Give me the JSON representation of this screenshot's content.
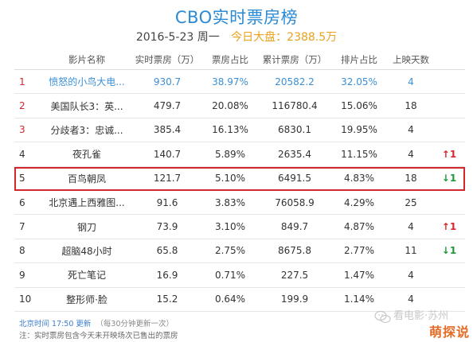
{
  "title": "CBO实时票房榜",
  "subtitle": {
    "date": "2016-5-23 周一",
    "dash_label": "今日大盘：",
    "dash_value": "2388.5万"
  },
  "columns": [
    "影片名称",
    "实时票房（万）",
    "票房占比",
    "累计票房（万）",
    "排片占比",
    "上映天数"
  ],
  "rows": [
    {
      "rank": "1",
      "name": "愤怒的小鸟大电...",
      "cur": "930.7",
      "share": "38.97%",
      "total": "20582.2",
      "seat": "32.05%",
      "days": "4",
      "trend": ""
    },
    {
      "rank": "2",
      "name": "美国队长3：英...",
      "cur": "479.7",
      "share": "20.08%",
      "total": "116780.4",
      "seat": "15.06%",
      "days": "18",
      "trend": ""
    },
    {
      "rank": "3",
      "name": "分歧者3：忠诚...",
      "cur": "385.4",
      "share": "16.13%",
      "total": "6830.1",
      "seat": "19.95%",
      "days": "4",
      "trend": ""
    },
    {
      "rank": "4",
      "name": "夜孔雀",
      "cur": "140.7",
      "share": "5.89%",
      "total": "2635.4",
      "seat": "11.15%",
      "days": "4",
      "trend": "↑1"
    },
    {
      "rank": "5",
      "name": "百鸟朝凤",
      "cur": "121.7",
      "share": "5.10%",
      "total": "6491.5",
      "seat": "4.83%",
      "days": "18",
      "trend": "↓1"
    },
    {
      "rank": "6",
      "name": "北京遇上西雅图...",
      "cur": "91.6",
      "share": "3.83%",
      "total": "76058.9",
      "seat": "4.29%",
      "days": "25",
      "trend": ""
    },
    {
      "rank": "7",
      "name": "钢刀",
      "cur": "73.9",
      "share": "3.10%",
      "total": "849.7",
      "seat": "4.87%",
      "days": "4",
      "trend": "↑1"
    },
    {
      "rank": "8",
      "name": "超脑48小时",
      "cur": "65.8",
      "share": "2.75%",
      "total": "8675.8",
      "seat": "2.77%",
      "days": "11",
      "trend": "↓1"
    },
    {
      "rank": "9",
      "name": "死亡笔记",
      "cur": "16.9",
      "share": "0.71%",
      "total": "227.5",
      "seat": "1.47%",
      "days": "4",
      "trend": ""
    },
    {
      "rank": "10",
      "name": "整形师·脸",
      "cur": "15.2",
      "share": "0.64%",
      "total": "199.9",
      "seat": "1.14%",
      "days": "4",
      "trend": ""
    }
  ],
  "footer": {
    "time": "北京时间 17:50 更新",
    "note": "（每30分钟更新一次）",
    "disclaimer": "注：实时票房包含今天未开映场次已售出的票房"
  },
  "watermark": {
    "text": "看电影·苏州",
    "badge": "萌探说"
  },
  "colors": {
    "accent": "#2a8ad4",
    "highlight": "#d4262d",
    "up": "#d4262d",
    "down": "#1f9a3a",
    "dash": "#e8a21a"
  }
}
